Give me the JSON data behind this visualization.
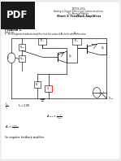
{
  "background_color": "#f0f0f0",
  "page_color": "#ffffff",
  "pdf_box_color": "#1a1a1a",
  "pdf_label": "PDF",
  "header_lines": [
    "ECE04-456",
    "Analog & Digital Filters and Communications",
    "Dr. Ahmed Mahfoz",
    "Sheet 3: FeedBack Amplifiers"
  ],
  "problem_label": "Problem 1.",
  "solution_label": "Solution:",
  "question_text": "1.  For a negative feedback amplifier, find the value of Af=Io for which the ratio:",
  "eq1_left": "I_o/I_i",
  "eq1_right": "I_o = 100",
  "eq2": "A_{loop} = A_f\\beta / A_{loop}",
  "eq3": "A_o = A_f\\beta / \\beta",
  "bottom_text": "For negative feedback amplifier."
}
